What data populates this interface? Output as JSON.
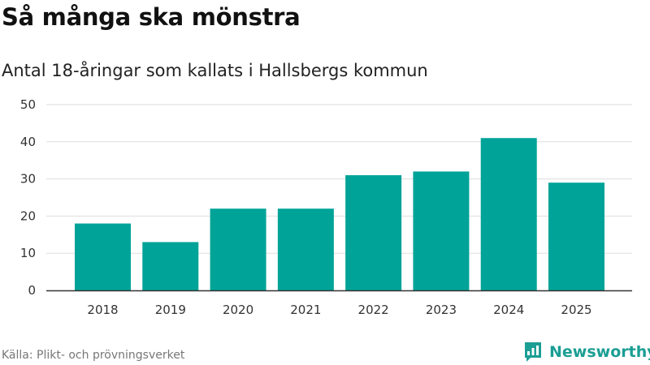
{
  "header": {
    "title": "Så många ska mönstra",
    "subtitle": "Antal 18-åringar som kallats i Hallsbergs kommun"
  },
  "footer": {
    "source": "Källa: Plikt- och prövningsverket",
    "brand": "Newsworthy",
    "brand_icon": "newsworthy-logo-icon"
  },
  "colors": {
    "bar": "#00a398",
    "grid": "#dddddd",
    "axis": "#333333",
    "brand": "#1b9e94"
  },
  "chart_data": {
    "type": "bar",
    "title": "Så många ska mönstra",
    "subtitle": "Antal 18-åringar som kallats i Hallsbergs kommun",
    "xlabel": "",
    "ylabel": "",
    "categories": [
      "2018",
      "2019",
      "2020",
      "2021",
      "2022",
      "2023",
      "2024",
      "2025"
    ],
    "values": [
      18,
      13,
      22,
      22,
      31,
      32,
      41,
      29
    ],
    "ylim": [
      0,
      50
    ],
    "yticks": [
      0,
      10,
      20,
      30,
      40,
      50
    ],
    "grid": true,
    "legend": "none"
  }
}
